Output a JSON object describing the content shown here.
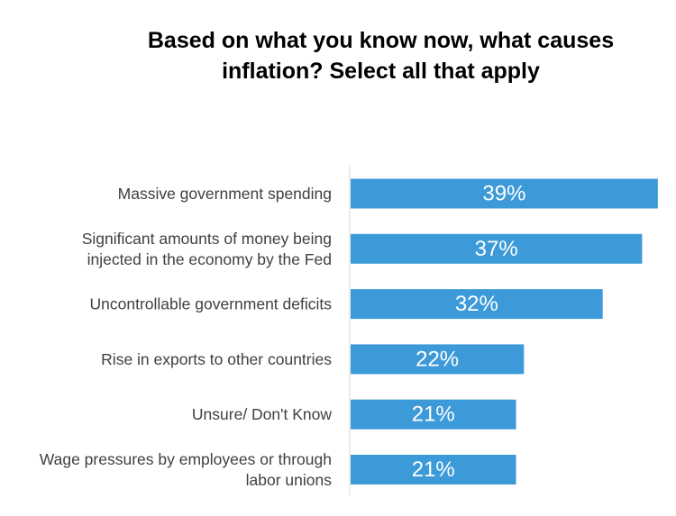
{
  "chart_data": {
    "type": "bar",
    "orientation": "horizontal",
    "title_lines": [
      "Based on what you know now, what causes",
      "inflation? Select all that apply"
    ],
    "categories": [
      [
        "Massive government spending"
      ],
      [
        "Significant amounts of money being",
        "injected in the economy by the Fed"
      ],
      [
        "Uncontrollable government deficits"
      ],
      [
        "Rise in exports to other countries"
      ],
      [
        "Unsure/ Don't Know"
      ],
      [
        "Wage pressures by employees or through",
        "labor unions"
      ]
    ],
    "values": [
      39,
      37,
      32,
      22,
      21,
      21
    ],
    "value_labels": [
      "39%",
      "37%",
      "32%",
      "22%",
      "21%",
      "21%"
    ],
    "unit": "%",
    "bar_color": "#3d9ad8",
    "grid": false,
    "legend": "none"
  }
}
